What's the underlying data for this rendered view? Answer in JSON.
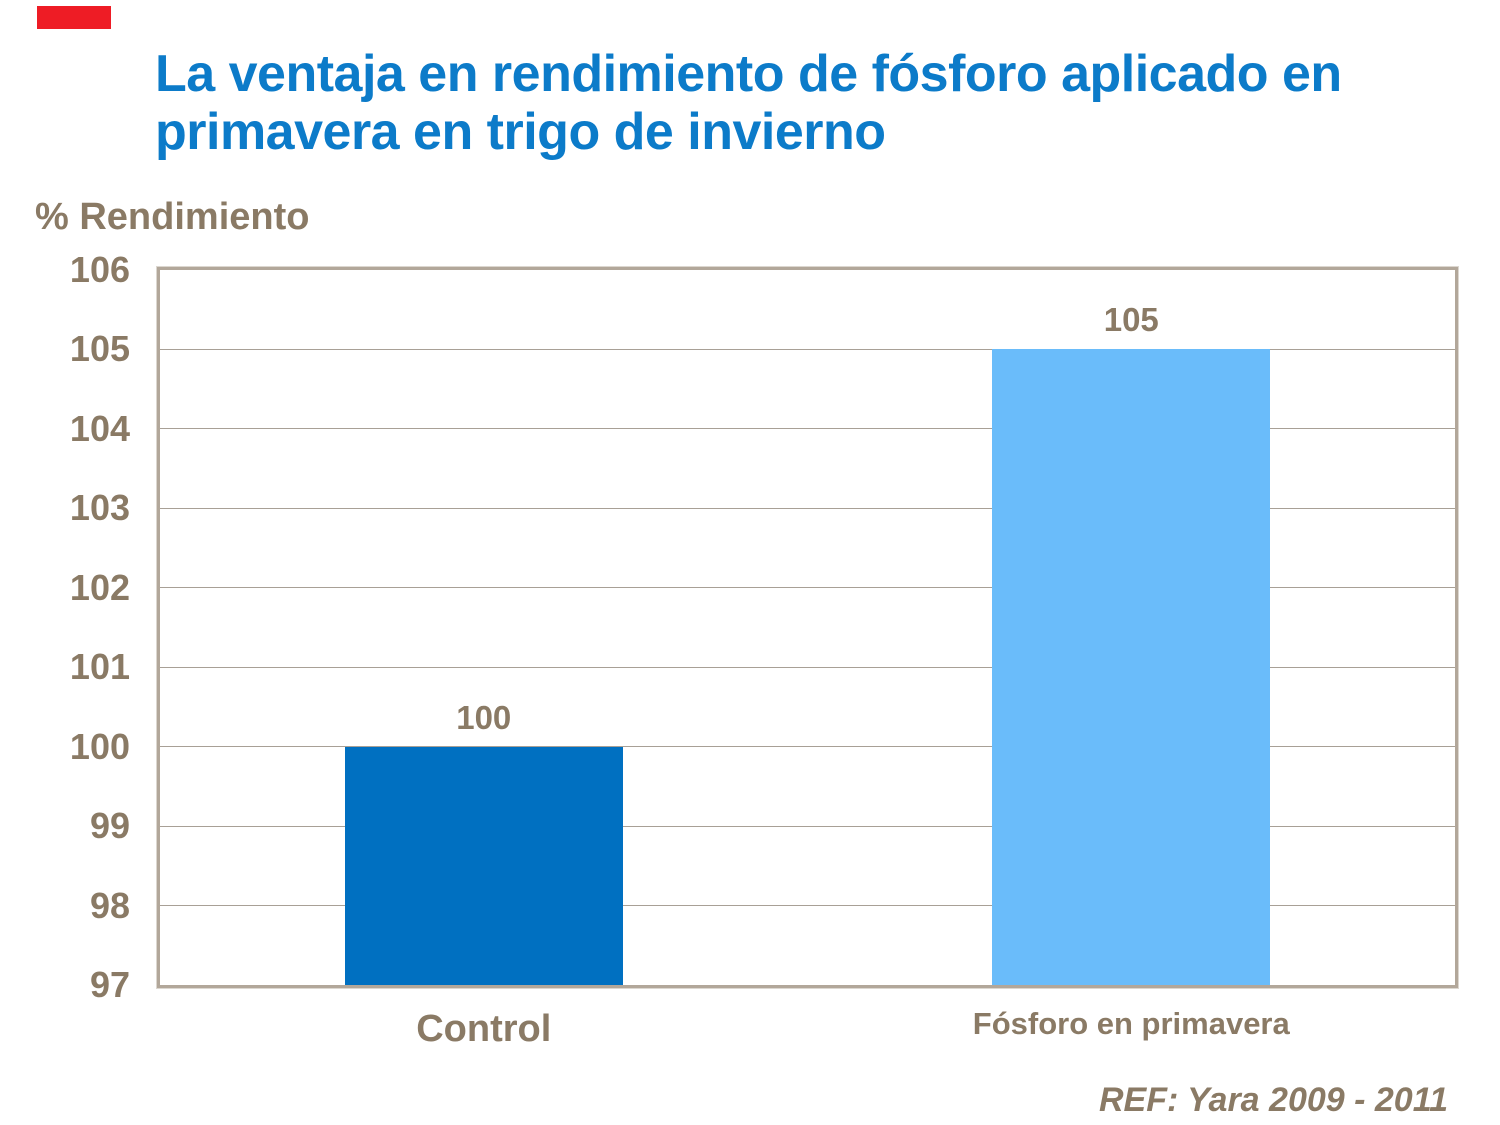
{
  "slide": {
    "title_line1": "La ventaja en rendimiento de fósforo aplicado en",
    "title_line2": "primavera en trigo de invierno",
    "ref_note": "REF: Yara 2009 - 2011"
  },
  "colors": {
    "title_blue": "#0c7bc9",
    "text_brown": "#8a7a65",
    "accent_red": "#ee1c25",
    "plot_border": "#b2a79a",
    "gridline": "#a8a096",
    "bar_control": "#0070c1",
    "bar_fosforo": "#6abcfa"
  },
  "chart_data": {
    "type": "bar",
    "title": "La ventaja en rendimiento de fósforo aplicado en primavera en trigo de invierno",
    "ylabel": "% Rendimiento",
    "xlabel": "",
    "categories": [
      "Control",
      "Fósforo en primavera"
    ],
    "values": [
      100,
      105
    ],
    "data_labels": [
      "100",
      "105"
    ],
    "series_colors": [
      "#0070c1",
      "#6abcfa"
    ],
    "ylim": [
      97,
      106
    ],
    "yticks": [
      106,
      105,
      104,
      103,
      102,
      101,
      100,
      99,
      98,
      97
    ],
    "grid": true,
    "legend": false,
    "annotation": "REF: Yara 2009 - 2011"
  }
}
